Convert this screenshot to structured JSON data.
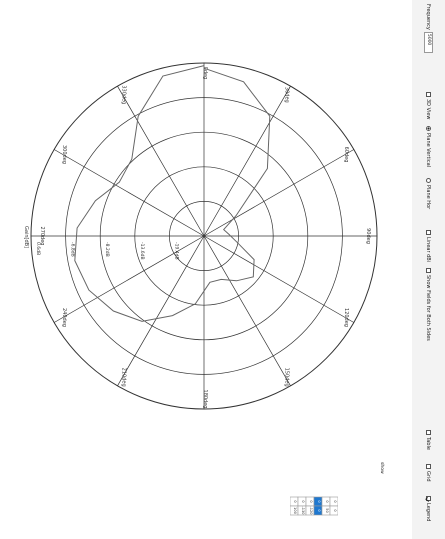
{
  "plot": {
    "angle_labels": [
      "0deg",
      "30deg",
      "60deg",
      "90deg",
      "120deg",
      "150deg",
      "180deg",
      "210deg",
      "240deg",
      "270deg",
      "300deg",
      "330deg"
    ],
    "radial_labels": [
      "0.6dB",
      "-6.8dB",
      "-8.2dB",
      "-13.6dB",
      "-19.4dB"
    ],
    "gain_label": "Gain[dB]",
    "grid_color": "#333333",
    "trace_color": "#666666",
    "trace_gain_db": [
      0.0,
      -1.0,
      -3.6,
      -8.7,
      -15.0,
      -17.0,
      -16.5,
      -15.5,
      -13.0,
      -12.0,
      -13.0,
      -14.0,
      -14.0,
      -11.5,
      -9.5,
      -7.2,
      -5.8,
      -4.7,
      -4.2,
      -4.7,
      -6.2,
      -7.8,
      -7.2,
      -3.6,
      -0.3,
      0.3
    ]
  },
  "toolbar": {
    "frequency_label": "Frequency",
    "frequency_value": "5000",
    "option_3d": "3D View",
    "option_vertical": "Plane Vertical",
    "option_horizontal": "Plane Hor",
    "option_dbi": "Linear dBi",
    "option_rx": "Show Fields for Both Sides",
    "option_mark": "Table",
    "option_grid": "Grid",
    "option_log": "Legend"
  },
  "table": {
    "headers": [
      "Value",
      "Theta"
    ],
    "rows": [
      [
        "0",
        "100"
      ],
      [
        "0",
        "-130"
      ],
      [
        "0",
        "-120"
      ],
      [
        "0",
        "0"
      ],
      [
        "0",
        "50"
      ],
      [
        "0",
        "0"
      ]
    ]
  },
  "legend_label": "show"
}
